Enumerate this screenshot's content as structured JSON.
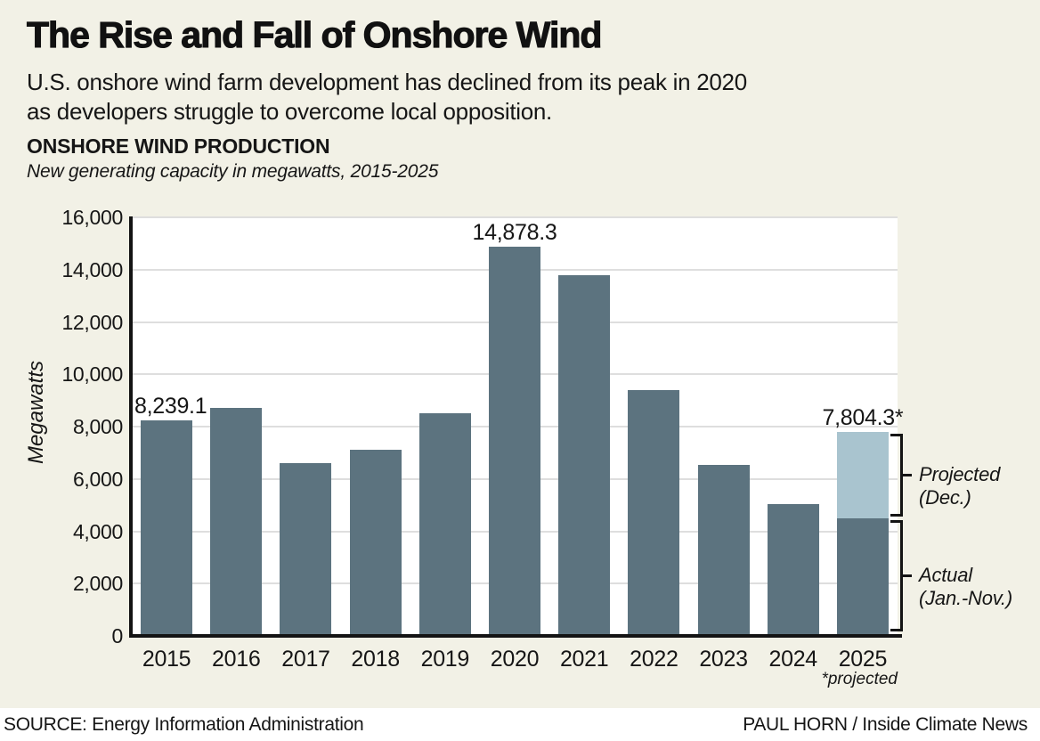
{
  "colors": {
    "background": "#f2f1e6",
    "plot_background": "#ffffff",
    "bar_actual": "#5c737f",
    "bar_projected": "#a9c4cf",
    "gridline": "#dedede",
    "axis": "#141414",
    "text": "#161616"
  },
  "header": {
    "title": "The Rise and Fall of Onshore Wind",
    "subtitle_line1": "U.S. onshore wind farm development has declined from its peak in 2020",
    "subtitle_line2": "as developers struggle to overcome local opposition."
  },
  "chart_data": {
    "type": "bar",
    "title": "ONSHORE WIND PRODUCTION",
    "subtitle": "New generating capacity in megawatts, 2015-2025",
    "ylabel": "Megawatts",
    "xlabel": "",
    "ylim": [
      0,
      16000
    ],
    "ytick_interval": 2000,
    "ytick_labels": [
      "16,000",
      "14,000",
      "12,000",
      "10,000",
      "8,000",
      "6,000",
      "4,000",
      "2,000",
      "0"
    ],
    "grid": true,
    "legend_position": "right-brackets",
    "categories": [
      "2015",
      "2016",
      "2017",
      "2018",
      "2019",
      "2020",
      "2021",
      "2022",
      "2023",
      "2024",
      "2025"
    ],
    "series": [
      {
        "name": "Actual (Jan.-Nov.)",
        "values": [
          8239.1,
          8700,
          6600,
          7100,
          8500,
          14878.3,
          13800,
          9400,
          6550,
          5050,
          4500
        ]
      },
      {
        "name": "Projected (Dec.)",
        "values": [
          0,
          0,
          0,
          0,
          0,
          0,
          0,
          0,
          0,
          0,
          3304.3
        ]
      }
    ],
    "bar_labels": [
      {
        "index": 0,
        "text": "8,239.1",
        "align": "left"
      },
      {
        "index": 5,
        "text": "14,878.3",
        "align": "center"
      },
      {
        "index": 10,
        "text": "7,804.3*",
        "align": "center"
      }
    ],
    "annotations": [
      {
        "lines": [
          "Projected",
          "(Dec.)"
        ],
        "from": 4500,
        "to": 7804.3
      },
      {
        "lines": [
          "Actual",
          "(Jan.-Nov.)"
        ],
        "from": 0,
        "to": 4500
      }
    ],
    "footnote": "*projected"
  },
  "footer": {
    "source": "SOURCE: Energy Information Administration",
    "credit": "PAUL HORN / Inside Climate News"
  }
}
